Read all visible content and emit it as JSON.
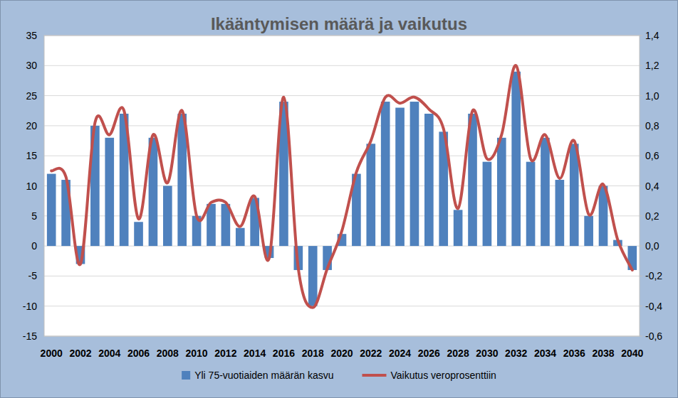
{
  "chart_data": {
    "type": "bar",
    "title": "Ikääntymisen määrä ja vaikutus",
    "categories": [
      "2000",
      null,
      "2002",
      null,
      "2004",
      null,
      "2006",
      null,
      "2008",
      null,
      "2010",
      null,
      "2012",
      null,
      "2014",
      null,
      "2016",
      null,
      "2018",
      null,
      "2020",
      null,
      "2022",
      null,
      "2024",
      null,
      "2026",
      null,
      "2028",
      null,
      "2030",
      null,
      "2032",
      null,
      "2034",
      null,
      "2036",
      null,
      "2038",
      null,
      "2040"
    ],
    "series": [
      {
        "name": "Yli 75-vuotiaiden määrän kasvu",
        "type": "bar",
        "color": "#4f81bd",
        "values": [
          12,
          11,
          -3,
          20,
          18,
          22,
          4,
          18,
          10,
          22,
          5,
          7,
          7,
          3,
          8,
          -2,
          24,
          -4,
          -10,
          -4,
          2,
          12,
          17,
          24,
          23,
          24,
          22,
          19,
          6,
          22,
          14,
          18,
          29,
          14,
          18,
          11,
          17,
          5,
          10,
          1,
          -4
        ]
      },
      {
        "name": "Vaikutus veroprosenttiin",
        "type": "line",
        "color": "#c0504d",
        "axis": "y2",
        "line_style": "smooth",
        "values": [
          0.5,
          0.46,
          -0.12,
          0.82,
          0.74,
          0.9,
          0.18,
          0.74,
          0.42,
          0.9,
          0.2,
          0.29,
          0.29,
          0.13,
          0.33,
          -0.08,
          0.99,
          -0.15,
          -0.41,
          -0.15,
          0.1,
          0.49,
          0.7,
          0.99,
          0.95,
          0.99,
          0.91,
          0.78,
          0.25,
          0.9,
          0.58,
          0.74,
          1.2,
          0.58,
          0.74,
          0.45,
          0.7,
          0.21,
          0.41,
          0.04,
          -0.16
        ]
      }
    ],
    "ylim": [
      -15,
      35
    ],
    "yticks": [
      -15,
      -10,
      -5,
      0,
      5,
      10,
      15,
      20,
      25,
      30,
      35
    ],
    "y2lim": [
      -0.6,
      1.4
    ],
    "y2ticks": [
      {
        "value": -0.6,
        "label": "-0,6"
      },
      {
        "value": -0.4,
        "label": "-0,4"
      },
      {
        "value": -0.2,
        "label": "-0,2"
      },
      {
        "value": 0,
        "label": "0,0"
      },
      {
        "value": 0.2,
        "label": "0,2"
      },
      {
        "value": 0.4,
        "label": "0,4"
      },
      {
        "value": 0.6,
        "label": "0,6"
      },
      {
        "value": 0.8,
        "label": "0,8"
      },
      {
        "value": 1.0,
        "label": "1,0"
      },
      {
        "value": 1.2,
        "label": "1,2"
      },
      {
        "value": 1.4,
        "label": "1,4"
      }
    ],
    "grid": true,
    "legend": "bottom"
  }
}
